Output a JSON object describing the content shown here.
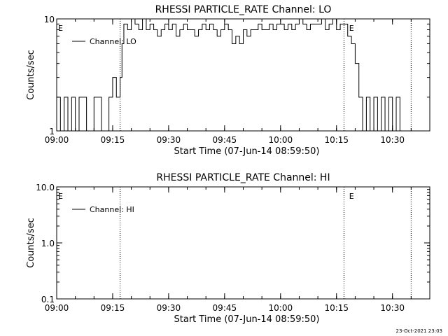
{
  "footer_timestamp": "23-Oct-2021 23:03",
  "chart_data": [
    {
      "type": "line",
      "title": "RHESSI PARTICLE_RATE Channel: LO",
      "xlabel": "Start Time (07-Jun-14 08:59:50)",
      "ylabel": "Counts/sec",
      "yscale": "log",
      "ylim": [
        1,
        10
      ],
      "yticks": [
        {
          "v": 1,
          "label": "1"
        },
        {
          "v": 10,
          "label": "10"
        }
      ],
      "xlim": [
        "09:00",
        "10:40"
      ],
      "xticks": [
        "09:00",
        "09:15",
        "09:30",
        "09:45",
        "10:00",
        "10:15",
        "10:30"
      ],
      "vlines": [
        "09:17",
        "10:17",
        "10:35"
      ],
      "markers": [
        {
          "x": "09:00",
          "label": "E"
        },
        {
          "x": "10:18",
          "label": "E"
        }
      ],
      "grid": false,
      "legend_position": "upper-left",
      "series": [
        {
          "name": "Channel: LO",
          "x_minutes": [
            0,
            1,
            2,
            3,
            4,
            5,
            6,
            8,
            10,
            12,
            14,
            15,
            16,
            17,
            17.5,
            18,
            19,
            20,
            21,
            22,
            23,
            24,
            25,
            26,
            27,
            28,
            29,
            30,
            31,
            32,
            33,
            34,
            35,
            36,
            37,
            38,
            39,
            40,
            41,
            42,
            43,
            44,
            45,
            46,
            47,
            48,
            49,
            50,
            51,
            52,
            53,
            54,
            55,
            56,
            57,
            58,
            59,
            60,
            61,
            62,
            63,
            64,
            65,
            66,
            67,
            68,
            69,
            70,
            71,
            72,
            73,
            74,
            75,
            76,
            77,
            78,
            79,
            80,
            81,
            82,
            83,
            84,
            85,
            86,
            87,
            88,
            89,
            90,
            91,
            92
          ],
          "values": [
            2,
            1,
            2,
            1,
            2,
            1,
            2,
            1,
            2,
            1,
            2,
            3,
            2,
            3,
            6,
            9,
            8,
            10,
            9,
            8,
            10,
            8,
            9,
            8,
            7,
            8,
            9,
            8,
            9,
            7,
            8,
            9,
            8,
            8,
            7,
            8,
            9,
            8,
            9,
            8,
            7,
            8,
            9,
            8,
            6,
            7,
            6,
            8,
            7,
            8,
            8,
            9,
            8,
            8,
            9,
            8,
            9,
            9,
            8,
            9,
            8,
            9,
            10,
            9,
            8,
            9,
            9,
            9,
            10,
            8,
            9,
            10,
            8,
            9,
            9,
            7,
            6,
            4,
            2,
            1,
            2,
            1,
            2,
            1,
            2,
            1,
            2,
            1,
            2,
            1
          ]
        }
      ]
    },
    {
      "type": "line",
      "title": "RHESSI PARTICLE_RATE Channel: HI",
      "xlabel": "Start Time (07-Jun-14 08:59:50)",
      "ylabel": "Counts/sec",
      "yscale": "log",
      "ylim": [
        0.1,
        10
      ],
      "yticks": [
        {
          "v": 0.1,
          "label": "0.1"
        },
        {
          "v": 1,
          "label": "1.0"
        },
        {
          "v": 10,
          "label": "10.0"
        }
      ],
      "xlim": [
        "09:00",
        "10:40"
      ],
      "xticks": [
        "09:00",
        "09:15",
        "09:30",
        "09:45",
        "10:00",
        "10:15",
        "10:30"
      ],
      "vlines": [
        "09:17",
        "10:17",
        "10:35"
      ],
      "markers": [
        {
          "x": "09:00",
          "label": "E"
        },
        {
          "x": "10:18",
          "label": "E"
        }
      ],
      "grid": false,
      "legend_position": "upper-left",
      "series": [
        {
          "name": "Channel: HI",
          "x_minutes": [],
          "values": []
        }
      ]
    }
  ]
}
